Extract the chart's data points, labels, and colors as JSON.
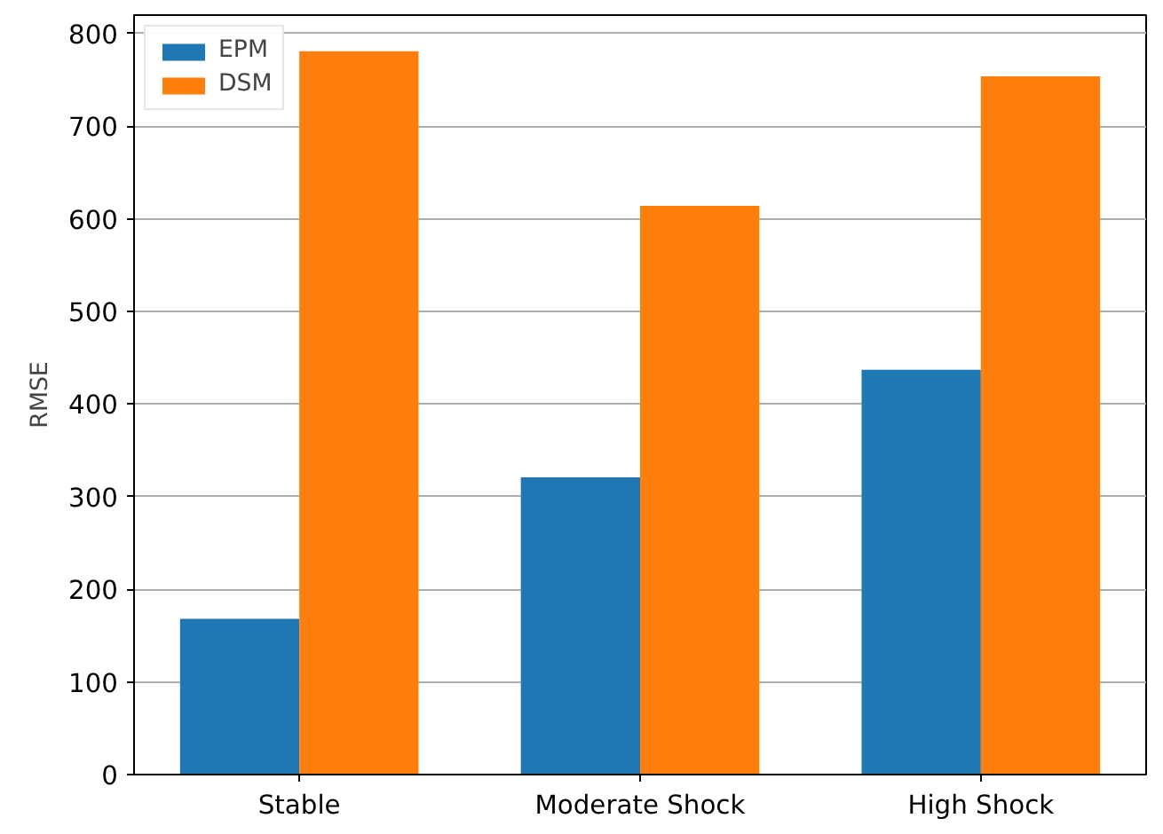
{
  "chart_data": {
    "type": "bar",
    "ylabel": "RMSE",
    "categories": [
      "Stable",
      "Moderate Shock",
      "High Shock"
    ],
    "series": [
      {
        "name": "EPM",
        "color": "#1f77b4",
        "values": [
          168,
          321,
          437
        ]
      },
      {
        "name": "DSM",
        "color": "#ff7f0e",
        "values": [
          781,
          614,
          754
        ]
      }
    ],
    "ylim": [
      0,
      820
    ],
    "yticks": [
      0,
      100,
      200,
      300,
      400,
      500,
      600,
      700,
      800
    ],
    "grid": "y",
    "legend": "top left"
  }
}
